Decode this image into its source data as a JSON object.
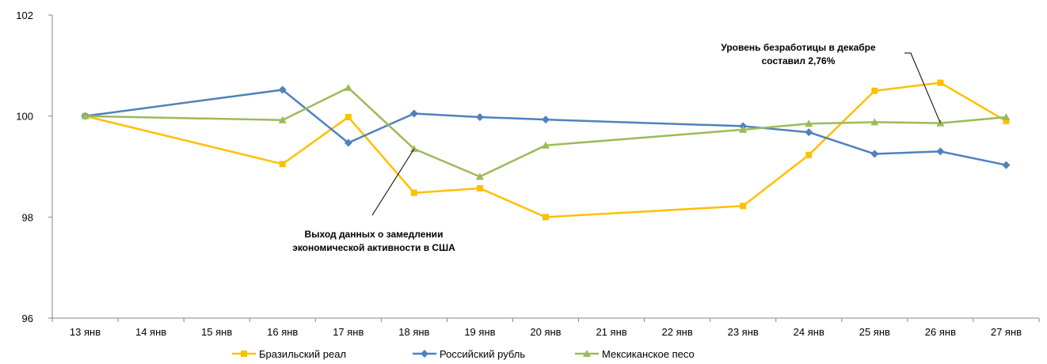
{
  "chart_data": {
    "type": "line",
    "categories": [
      "13 янв",
      "14 янв",
      "15 янв",
      "16 янв",
      "17 янв",
      "18 янв",
      "19 янв",
      "20 янв",
      "21 янв",
      "22 янв",
      "23 янв",
      "24 янв",
      "25 янв",
      "26 янв",
      "27 янв"
    ],
    "ylim": [
      96,
      102
    ],
    "yticks": [
      96,
      98,
      100,
      102
    ],
    "grid": false,
    "legend_position": "bottom",
    "series": [
      {
        "name": "Бразильский реал",
        "color": "#FFC000",
        "marker": "square",
        "values": [
          100.0,
          null,
          null,
          99.05,
          99.98,
          98.48,
          98.57,
          98.0,
          null,
          null,
          98.22,
          99.23,
          100.5,
          100.66,
          99.9
        ]
      },
      {
        "name": "Российский рубль",
        "color": "#4F81BD",
        "marker": "diamond",
        "values": [
          100.0,
          null,
          null,
          100.52,
          99.47,
          100.05,
          99.98,
          99.93,
          null,
          null,
          99.8,
          99.68,
          99.25,
          99.3,
          99.03
        ]
      },
      {
        "name": "Мексиканское песо",
        "color": "#9BBB59",
        "marker": "triangle",
        "values": [
          100.0,
          null,
          null,
          99.92,
          100.56,
          99.35,
          98.8,
          99.42,
          null,
          null,
          99.73,
          99.85,
          99.88,
          99.86,
          99.98
        ]
      }
    ],
    "annotations": [
      {
        "lines": [
          "Уровень безработицы в декабре",
          "составил 2,76%"
        ],
        "points_to": {
          "category": "26 янв",
          "y": 99.86
        }
      },
      {
        "lines": [
          "Выход данных о замедлении",
          "экономической активности в США"
        ],
        "points_to": {
          "category": "18 янв",
          "y": 99.35
        }
      }
    ]
  }
}
